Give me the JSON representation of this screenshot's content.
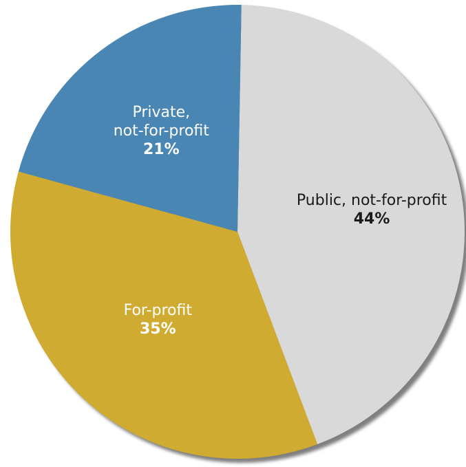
{
  "chart_data": {
    "type": "pie",
    "title": "",
    "legend": "none",
    "slices": [
      {
        "label_lines": [
          "Public, not-for-profit"
        ],
        "value": 44,
        "value_label": "44%",
        "color": "#d9d9d9",
        "text_color": "#1a1a1a"
      },
      {
        "label_lines": [
          "For-profit"
        ],
        "value": 35,
        "value_label": "35%",
        "color": "#cfab31",
        "text_color": "#ffffff"
      },
      {
        "label_lines": [
          "Private,",
          "not-for-profit"
        ],
        "value": 21,
        "value_label": "21%",
        "color": "#4a86b4",
        "text_color": "#ffffff"
      }
    ]
  }
}
